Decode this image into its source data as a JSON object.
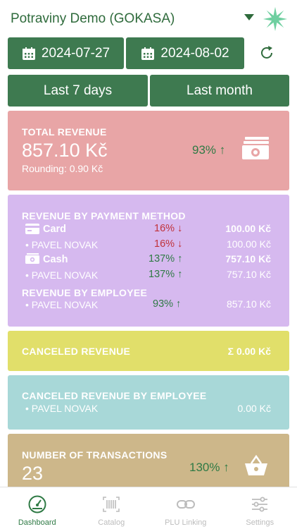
{
  "header": {
    "store_name": "Potraviny Demo (GOKASA)"
  },
  "dates": {
    "from": "2024-07-27",
    "to": "2024-08-02"
  },
  "ranges": {
    "last7": "Last 7 days",
    "last_month": "Last month"
  },
  "total_revenue": {
    "title": "TOTAL REVENUE",
    "amount": "857.10 Kč",
    "rounding": "Rounding: 0.90 Kč",
    "change": "93% ↑"
  },
  "payment_method": {
    "title": "REVENUE BY PAYMENT METHOD",
    "card": {
      "label": "Card",
      "change": "16% ↓",
      "amount": "100.00 Kč"
    },
    "card_employee": {
      "label": "• PAVEL NOVAK",
      "change": "16% ↓",
      "amount": "100.00 Kč"
    },
    "cash": {
      "label": "Cash",
      "change": "137% ↑",
      "amount": "757.10 Kč"
    },
    "cash_employee": {
      "label": "• PAVEL NOVAK",
      "change": "137% ↑",
      "amount": "757.10 Kč"
    },
    "employee_title": "REVENUE BY EMPLOYEE",
    "employee": {
      "label": "• PAVEL NOVAK",
      "change": "93% ↑",
      "amount": "857.10 Kč"
    }
  },
  "canceled": {
    "title": "CANCELED REVENUE",
    "amount": "Σ 0.00 Kč"
  },
  "canceled_employee": {
    "title": "CANCELED REVENUE BY EMPLOYEE",
    "employee": {
      "label": "• PAVEL NOVAK",
      "amount": "0.00 Kč"
    }
  },
  "transactions": {
    "title": "NUMBER OF TRANSACTIONS",
    "count": "23",
    "change": "130% ↑"
  },
  "tabs": {
    "dashboard": "Dashboard",
    "catalog": "Catalog",
    "plu": "PLU Linking",
    "settings": "Settings"
  },
  "colors": {
    "green": "#3e7a50",
    "revenue_card": "#e8a5a6",
    "payment_card": "#d6b9ef",
    "canceled_card": "#e1df6a",
    "canceled_emp_card": "#a8d8d8",
    "transactions_card": "#cdb78a"
  }
}
